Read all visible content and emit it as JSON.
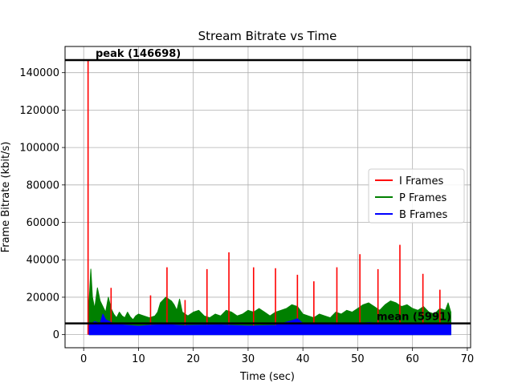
{
  "chart_data": {
    "type": "line",
    "title": "Stream Bitrate vs Time",
    "xlabel": "Time (sec)",
    "ylabel": "Frame Bitrate (kbit/s)",
    "xlim": [
      -3.4,
      70.6
    ],
    "ylim": [
      -7000,
      154000
    ],
    "xticks": [
      0,
      10,
      20,
      30,
      40,
      50,
      60,
      70
    ],
    "yticks": [
      0,
      20000,
      40000,
      60000,
      80000,
      100000,
      120000,
      140000
    ],
    "grid": true,
    "legend_position": "center-right",
    "reference_lines": [
      {
        "name": "peak",
        "value": 146698,
        "label": "peak (146698)",
        "color": "#000000"
      },
      {
        "name": "mean",
        "value": 5991,
        "label": "mean (5991)",
        "color": "#000000"
      }
    ],
    "series": [
      {
        "name": "I Frames",
        "color": "#ff0000",
        "style": "spikes",
        "x": [
          0.8,
          5.0,
          12.2,
          15.2,
          18.5,
          22.5,
          26.5,
          31.0,
          35.0,
          39.0,
          42.0,
          46.2,
          50.4,
          53.7,
          57.7,
          61.9,
          65.0
        ],
        "y": [
          146698,
          25000,
          21000,
          36000,
          18500,
          35000,
          44000,
          36000,
          35500,
          32000,
          28500,
          36000,
          43000,
          35000,
          48000,
          32500,
          24000
        ]
      },
      {
        "name": "P Frames",
        "color": "#008000",
        "style": "dense",
        "x": [
          1.0,
          1.3,
          1.6,
          2.0,
          2.5,
          3.0,
          3.5,
          4.0,
          4.5,
          5.0,
          5.5,
          6.0,
          6.5,
          7.0,
          7.5,
          8.0,
          8.5,
          9.0,
          9.5,
          10.0,
          11.0,
          12.0,
          13.0,
          13.5,
          14.0,
          15.0,
          16.0,
          16.5,
          17.0,
          17.5,
          18.0,
          19.0,
          20.0,
          21.0,
          22.0,
          23.0,
          24.0,
          25.0,
          26.0,
          27.0,
          28.0,
          29.0,
          30.0,
          31.0,
          32.0,
          33.0,
          34.0,
          35.0,
          36.0,
          37.0,
          38.0,
          39.0,
          40.0,
          41.0,
          42.0,
          43.0,
          44.0,
          45.0,
          46.0,
          47.0,
          48.0,
          49.0,
          50.0,
          51.0,
          52.0,
          53.0,
          54.0,
          55.0,
          56.0,
          57.0,
          58.0,
          59.0,
          60.0,
          61.0,
          62.0,
          63.0,
          64.0,
          65.0,
          66.0,
          66.5,
          67.0
        ],
        "y": [
          18000,
          35000,
          20000,
          14000,
          25000,
          18000,
          15000,
          12000,
          20000,
          14000,
          11000,
          9000,
          12000,
          10000,
          9000,
          12000,
          9500,
          8000,
          10000,
          11000,
          10000,
          9000,
          10000,
          12000,
          17000,
          20000,
          18000,
          16000,
          13000,
          19000,
          12000,
          10000,
          12000,
          13000,
          10000,
          9000,
          11000,
          10000,
          13000,
          12000,
          10000,
          11000,
          13000,
          12000,
          14000,
          12000,
          10000,
          12000,
          13000,
          14000,
          16000,
          15000,
          11000,
          10000,
          9000,
          11000,
          10000,
          9000,
          12000,
          11000,
          13000,
          12000,
          14000,
          16000,
          17000,
          15000,
          13000,
          16000,
          18000,
          17000,
          15000,
          16000,
          14000,
          13000,
          15000,
          12000,
          11000,
          14000,
          13000,
          17000,
          12000
        ]
      },
      {
        "name": "B Frames",
        "color": "#0000ff",
        "style": "dense",
        "x": [
          1.0,
          2.0,
          3.0,
          3.5,
          4.0,
          5.0,
          6.0,
          8.0,
          10.0,
          12.0,
          15.0,
          18.0,
          20.0,
          25.0,
          30.0,
          35.0,
          38.0,
          39.0,
          40.0,
          45.0,
          50.0,
          52.0,
          55.0,
          60.0,
          65.0,
          67.0
        ],
        "y": [
          5000,
          7000,
          6000,
          11000,
          8000,
          6500,
          5500,
          5000,
          4500,
          5000,
          5500,
          4800,
          5000,
          5200,
          4600,
          5000,
          7500,
          8500,
          6000,
          5200,
          5800,
          6500,
          5500,
          5800,
          5400,
          6000
        ]
      }
    ]
  }
}
